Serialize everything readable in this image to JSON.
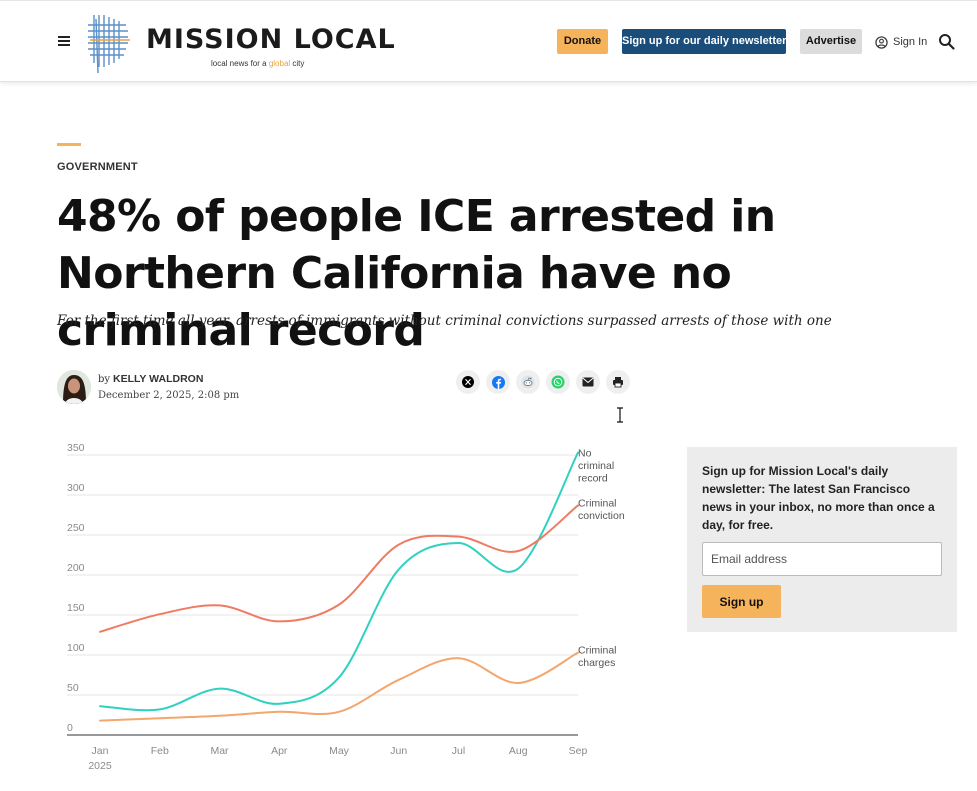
{
  "header": {
    "logo_text": "MISSION LOCAL",
    "tagline_prefix": "local news for a ",
    "tagline_accent": "global",
    "tagline_suffix": " city",
    "donate_label": "Donate",
    "newsletter_label": "Sign up for our daily newsletter",
    "advertise_label": "Advertise",
    "signin_label": "Sign In"
  },
  "article": {
    "category": "Government",
    "headline": "48% of people ICE arrested in Northern California have no criminal record",
    "dek": "For the first time all year, arrests of immigrants without criminal convictions surpassed arrests of those with one",
    "by_label": "by",
    "author": "Kelly Waldron",
    "date": "December 2, 2025, 2:08 pm"
  },
  "share_icons": [
    "x-icon",
    "facebook-icon",
    "reddit-icon",
    "whatsapp-icon",
    "email-icon",
    "print-icon"
  ],
  "chart_data": {
    "type": "line",
    "categories": [
      "Jan",
      "Feb",
      "Mar",
      "Apr",
      "May",
      "Jun",
      "Jul",
      "Aug",
      "Sep"
    ],
    "x_sublabel": "2025",
    "ylim": [
      0,
      350
    ],
    "yticks": [
      0,
      50,
      100,
      150,
      200,
      250,
      300,
      350
    ],
    "grid": true,
    "series": [
      {
        "name": "No criminal record",
        "label_lines": [
          "No",
          "criminal",
          "record"
        ],
        "color": "#2fd1c0",
        "values": [
          36,
          32,
          58,
          39,
          72,
          207,
          240,
          208,
          353
        ]
      },
      {
        "name": "Criminal conviction",
        "label_lines": [
          "Criminal",
          "conviction"
        ],
        "color": "#ef7b62",
        "values": [
          129,
          151,
          162,
          142,
          163,
          238,
          248,
          230,
          287
        ]
      },
      {
        "name": "Criminal charges",
        "label_lines": [
          "Criminal",
          "charges"
        ],
        "color": "#f3a66d",
        "values": [
          18,
          21,
          24,
          29,
          29,
          69,
          96,
          65,
          103
        ]
      }
    ]
  },
  "newsletter_box": {
    "text": "Sign up for Mission Local's daily newsletter: The latest San Francisco news in your inbox, no more than once a day, for free.",
    "email_placeholder": "Email address",
    "button_label": "Sign up"
  }
}
